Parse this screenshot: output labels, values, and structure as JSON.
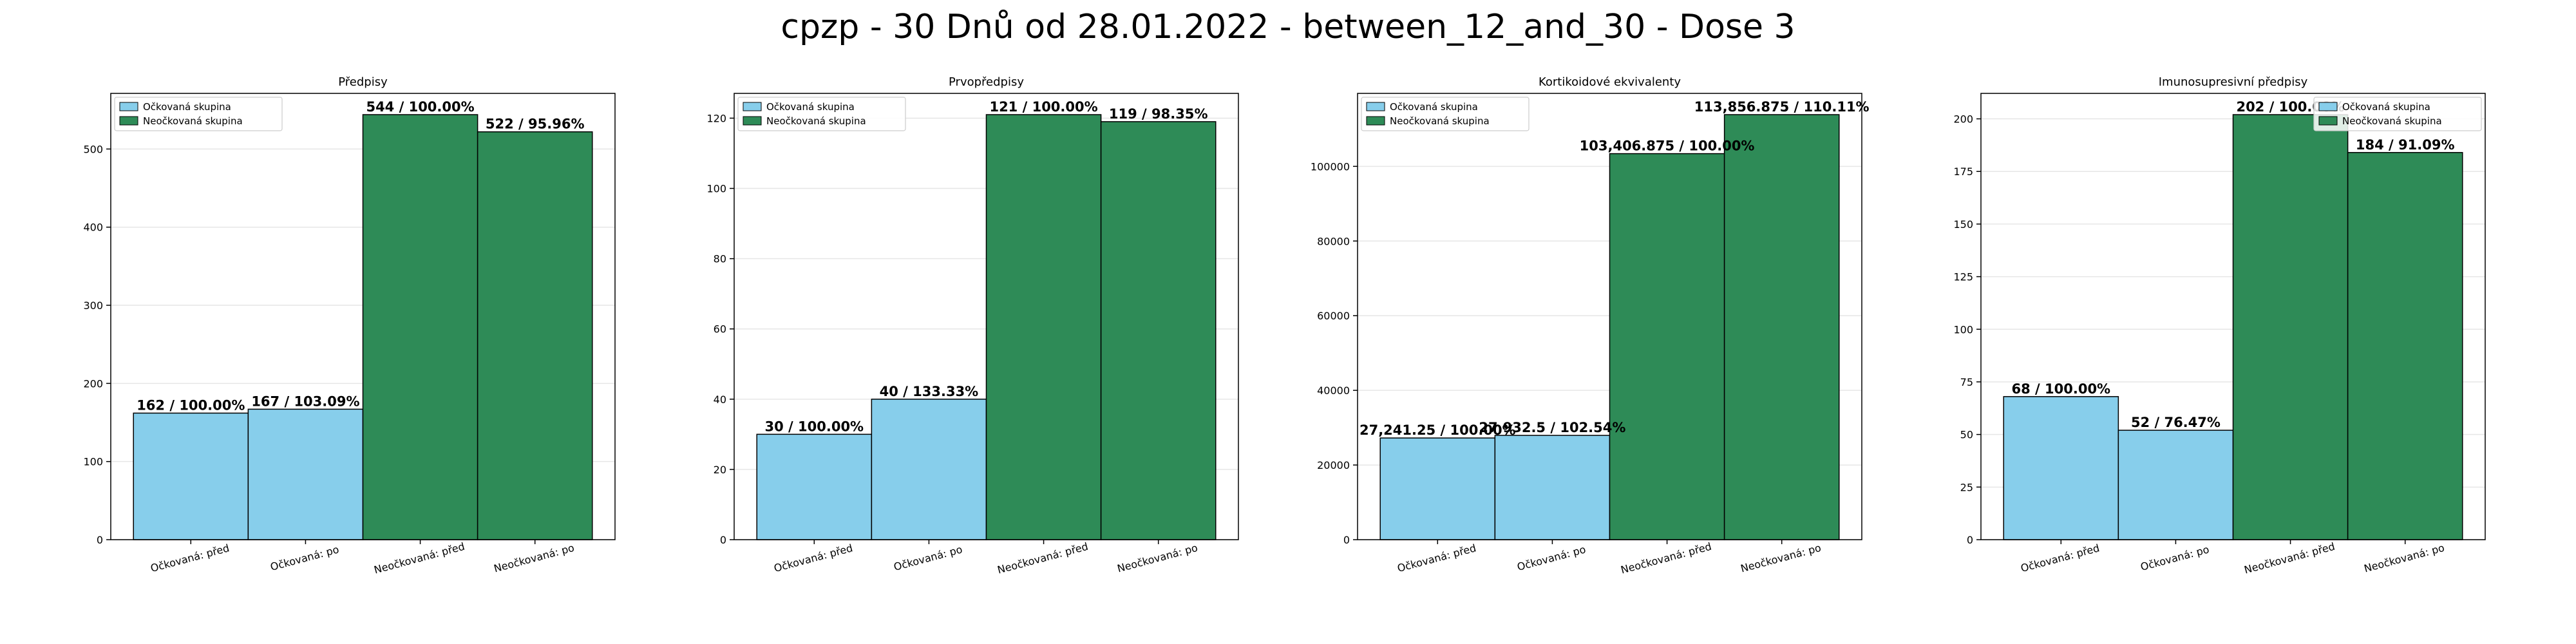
{
  "suptitle": "cpzp - 30 Dnů od 28.01.2022 - between_12_and_30 - Dose 3",
  "colors": {
    "vaccinated": "#87CEEB",
    "unvaccinated": "#2E8B57",
    "edge": "#000000",
    "grid": "#e6e6e6"
  },
  "legend": {
    "vaccinated": "Očkovaná skupina",
    "unvaccinated": "Neočkovaná skupina"
  },
  "chart_data": [
    {
      "type": "bar",
      "title": "Předpisy",
      "categories": [
        "Očkovaná: před",
        "Očkovaná: po",
        "Neočkovaná: před",
        "Neočkovaná: po"
      ],
      "values": [
        162,
        167,
        544,
        522
      ],
      "labels": [
        "162 / 100.00%",
        "167 / 103.09%",
        "544 / 100.00%",
        "522 / 95.96%"
      ],
      "groups": [
        "vaccinated",
        "vaccinated",
        "unvaccinated",
        "unvaccinated"
      ],
      "ylim": [
        0,
        571.2
      ],
      "yticks": [
        0,
        100,
        200,
        300,
        400,
        500
      ],
      "grid": true,
      "legend_position": "upper left"
    },
    {
      "type": "bar",
      "title": "Prvopředpisy",
      "categories": [
        "Očkovaná: před",
        "Očkovaná: po",
        "Neočkovaná: před",
        "Neočkovaná: po"
      ],
      "values": [
        30,
        40,
        121,
        119
      ],
      "labels": [
        "30 / 100.00%",
        "40 / 133.33%",
        "121 / 100.00%",
        "119 / 98.35%"
      ],
      "groups": [
        "vaccinated",
        "vaccinated",
        "unvaccinated",
        "unvaccinated"
      ],
      "ylim": [
        0,
        127.05
      ],
      "yticks": [
        0,
        20,
        40,
        60,
        80,
        100,
        120
      ],
      "grid": true,
      "legend_position": "upper left"
    },
    {
      "type": "bar",
      "title": "Kortikoidové ekvivalenty",
      "categories": [
        "Očkovaná: před",
        "Očkovaná: po",
        "Neočkovaná: před",
        "Neočkovaná: po"
      ],
      "values": [
        27241.25,
        27932.5,
        103406.875,
        113856.875
      ],
      "labels": [
        "27,241.25 / 100.00%",
        "27,932.5 / 102.54%",
        "103,406.875 / 100.00%",
        "113,856.875 / 110.11%"
      ],
      "groups": [
        "vaccinated",
        "vaccinated",
        "unvaccinated",
        "unvaccinated"
      ],
      "ylim": [
        0,
        119550
      ],
      "yticks": [
        0,
        20000,
        40000,
        60000,
        80000,
        100000
      ],
      "grid": true,
      "legend_position": "upper left"
    },
    {
      "type": "bar",
      "title": "Imunosupresivní předpisy",
      "categories": [
        "Očkovaná: před",
        "Očkovaná: po",
        "Neočkovaná: před",
        "Neočkovaná: po"
      ],
      "values": [
        68,
        52,
        202,
        184
      ],
      "labels": [
        "68 / 100.00%",
        "52 / 76.47%",
        "202 / 100.00%",
        "184 / 91.09%"
      ],
      "groups": [
        "vaccinated",
        "vaccinated",
        "unvaccinated",
        "unvaccinated"
      ],
      "ylim": [
        0,
        212.1
      ],
      "yticks": [
        0,
        25,
        50,
        75,
        100,
        125,
        150,
        175,
        200
      ],
      "grid": true,
      "legend_position": "upper right"
    }
  ]
}
